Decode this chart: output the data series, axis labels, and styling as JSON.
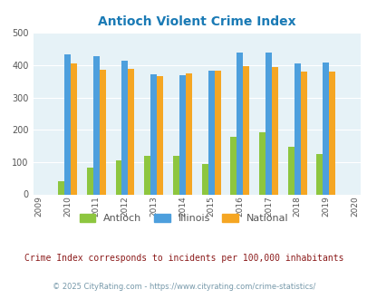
{
  "title": "Antioch Violent Crime Index",
  "title_color": "#1a7ab5",
  "all_years": [
    2009,
    2010,
    2011,
    2012,
    2013,
    2014,
    2015,
    2016,
    2017,
    2018,
    2019,
    2020
  ],
  "data_years": [
    2010,
    2011,
    2012,
    2013,
    2014,
    2015,
    2016,
    2017,
    2018,
    2019
  ],
  "antioch": [
    40,
    82,
    105,
    118,
    118,
    95,
    178,
    193,
    147,
    125
  ],
  "illinois": [
    433,
    428,
    415,
    372,
    369,
    383,
    438,
    438,
    405,
    408
  ],
  "national": [
    405,
    387,
    388,
    366,
    375,
    383,
    397,
    394,
    379,
    379
  ],
  "antioch_color": "#8dc63f",
  "illinois_color": "#4d9fdd",
  "national_color": "#f5a623",
  "bg_color": "#e6f2f7",
  "ylim": [
    0,
    500
  ],
  "yticks": [
    0,
    100,
    200,
    300,
    400,
    500
  ],
  "bar_width": 0.22,
  "legend_labels": [
    "Antioch",
    "Illinois",
    "National"
  ],
  "footnote1": "Crime Index corresponds to incidents per 100,000 inhabitants",
  "footnote2": "© 2025 CityRating.com - https://www.cityrating.com/crime-statistics/",
  "footnote1_color": "#8b1a1a",
  "footnote2_color": "#7799aa",
  "grid_color": "#ffffff",
  "axis_label_color": "#555555"
}
